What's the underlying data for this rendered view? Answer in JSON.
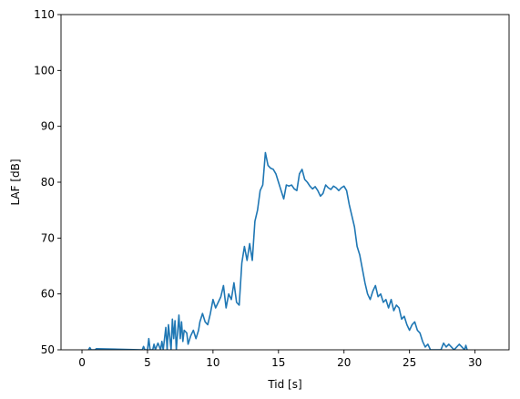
{
  "chart_data": {
    "type": "line",
    "title": "",
    "xlabel": "Tid [s]",
    "ylabel": "LAF [dB]",
    "xlim": [
      -1.6,
      32.6
    ],
    "ylim": [
      50,
      110
    ],
    "xticks": [
      0,
      5,
      10,
      15,
      20,
      25,
      30
    ],
    "yticks": [
      50,
      60,
      70,
      80,
      90,
      100,
      110
    ],
    "grid": false,
    "series_color": "#1f77b4",
    "series": [
      {
        "x": [
          0.5,
          0.6,
          0.7,
          1.0,
          1.1,
          4.6,
          4.7,
          4.8,
          5.0,
          5.1,
          5.2,
          5.4,
          5.5,
          5.6,
          5.8,
          6.0,
          6.1,
          6.2,
          6.4,
          6.5,
          6.6,
          6.8,
          6.9,
          7.0,
          7.1,
          7.2,
          7.4,
          7.5,
          7.6,
          7.7,
          7.8,
          8.0,
          8.1,
          8.3,
          8.5,
          8.7,
          8.9,
          9.0,
          9.2,
          9.4,
          9.6,
          9.8,
          10.0,
          10.2,
          10.4,
          10.6,
          10.8,
          11.0,
          11.2,
          11.4,
          11.6,
          11.8,
          12.0,
          12.2,
          12.4,
          12.6,
          12.8,
          13.0,
          13.2,
          13.4,
          13.6,
          13.8,
          14.0,
          14.2,
          14.4,
          14.6,
          14.8,
          15.0,
          15.2,
          15.4,
          15.6,
          15.8,
          16.0,
          16.2,
          16.4,
          16.6,
          16.8,
          17.0,
          17.2,
          17.4,
          17.6,
          17.8,
          18.0,
          18.2,
          18.4,
          18.6,
          18.8,
          19.0,
          19.2,
          19.4,
          19.6,
          19.8,
          20.0,
          20.2,
          20.4,
          20.6,
          20.8,
          21.0,
          21.2,
          21.4,
          21.6,
          21.8,
          22.0,
          22.2,
          22.4,
          22.6,
          22.8,
          23.0,
          23.2,
          23.4,
          23.6,
          23.8,
          24.0,
          24.2,
          24.4,
          24.6,
          24.8,
          25.0,
          25.2,
          25.4,
          25.6,
          25.8,
          26.0,
          26.2,
          26.4,
          26.6,
          27.4,
          27.6,
          27.8,
          28.0,
          28.2,
          28.4,
          28.6,
          28.8,
          29.2,
          29.3,
          29.4
        ],
        "y": [
          50,
          50.4,
          50,
          50,
          50.2,
          50,
          50.6,
          50,
          50,
          52.0,
          50,
          50,
          51.0,
          50,
          51.2,
          50,
          51.5,
          50,
          54.0,
          50,
          54.5,
          50,
          55.5,
          52.0,
          55.2,
          50,
          56.2,
          52.0,
          55.0,
          51.5,
          53.5,
          53.0,
          51.0,
          52.5,
          53.5,
          52.0,
          53.5,
          55.0,
          56.5,
          55.0,
          54.5,
          56.5,
          59.0,
          57.5,
          58.5,
          59.5,
          61.5,
          57.5,
          60.0,
          59.0,
          62.0,
          58.5,
          58.0,
          65.5,
          68.5,
          66.0,
          69.0,
          66.0,
          73.0,
          75.0,
          78.5,
          79.5,
          85.3,
          83.0,
          82.5,
          82.3,
          81.5,
          80.0,
          78.5,
          77.0,
          79.5,
          79.3,
          79.5,
          78.8,
          78.5,
          81.5,
          82.3,
          80.5,
          80.0,
          79.3,
          78.8,
          79.2,
          78.5,
          77.5,
          78.0,
          79.5,
          79.0,
          78.7,
          79.3,
          79.0,
          78.5,
          79.0,
          79.3,
          78.5,
          76.0,
          74.0,
          72.0,
          68.5,
          67.0,
          64.5,
          62.0,
          60.0,
          59.0,
          60.5,
          61.5,
          59.5,
          60.0,
          58.5,
          59.0,
          57.5,
          59.0,
          57.0,
          58.0,
          57.5,
          55.5,
          56.0,
          54.5,
          53.5,
          54.5,
          55.0,
          53.5,
          53.0,
          51.5,
          50.5,
          51.0,
          50,
          50,
          51.2,
          50.5,
          51.0,
          50.5,
          50,
          50.5,
          51.0,
          50,
          50.8,
          50
        ]
      }
    ]
  }
}
